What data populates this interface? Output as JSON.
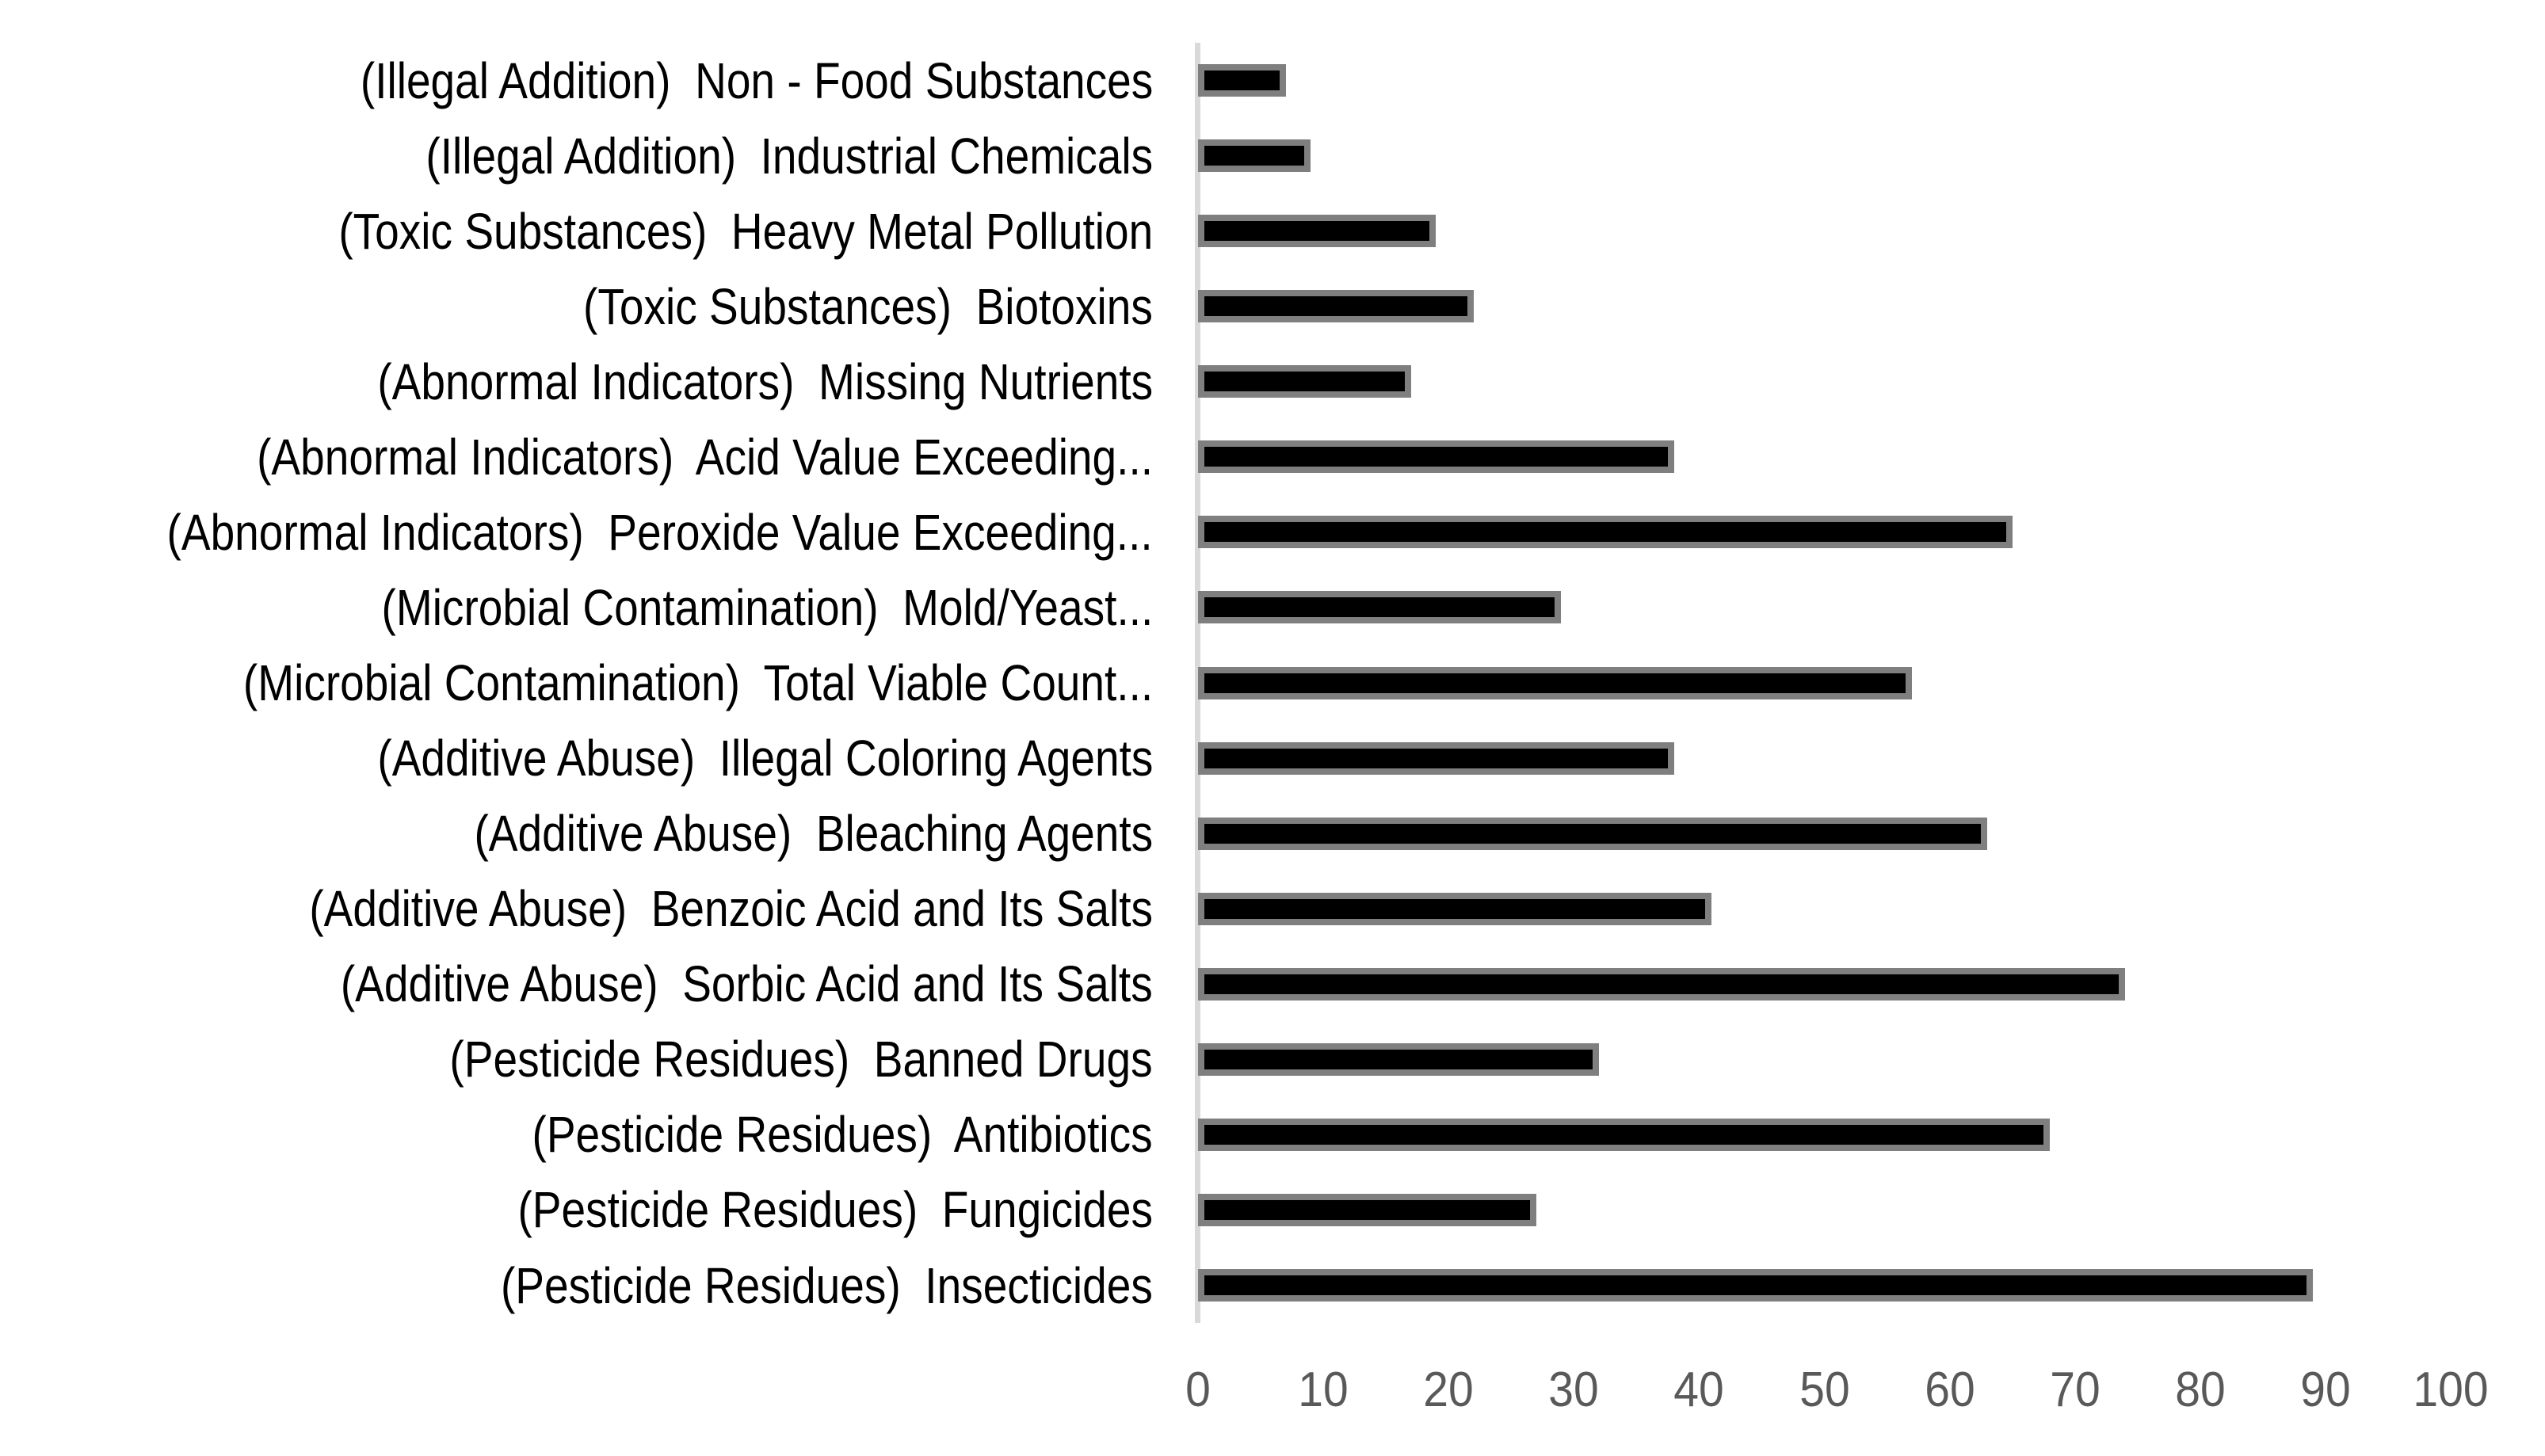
{
  "chart_data": {
    "type": "bar",
    "orientation": "horizontal",
    "title": "",
    "xlabel": "",
    "ylabel": "",
    "categories": [
      "(Illegal Addition)  Non - Food Substances",
      "(Illegal Addition)  Industrial Chemicals",
      "(Toxic Substances)  Heavy Metal Pollution",
      "(Toxic Substances)  Biotoxins",
      "(Abnormal Indicators)  Missing Nutrients",
      "(Abnormal Indicators)  Acid Value Exceeding...",
      "(Abnormal Indicators)  Peroxide Value Exceeding...",
      "(Microbial Contamination)  Mold/Yeast...",
      "(Microbial Contamination)  Total Viable Count...",
      "(Additive Abuse)  Illegal Coloring Agents",
      "(Additive Abuse)  Bleaching Agents",
      "(Additive Abuse)  Benzoic Acid and Its Salts",
      "(Additive Abuse)  Sorbic Acid and Its Salts",
      "(Pesticide Residues)  Banned Drugs",
      "(Pesticide Residues)  Antibiotics",
      "(Pesticide Residues)  Fungicides",
      "(Pesticide Residues)  Insecticides"
    ],
    "values": [
      7,
      9,
      19,
      22,
      17,
      38,
      65,
      29,
      57,
      38,
      63,
      41,
      74,
      32,
      68,
      27,
      89
    ],
    "xlim": [
      0,
      100
    ],
    "x_ticks": [
      0,
      10,
      20,
      30,
      40,
      50,
      60,
      70,
      80,
      90,
      100
    ],
    "grid": false,
    "legend": false,
    "colors": {
      "background": "#ffffff",
      "bar_fill": "#000000",
      "bar_border": "#7f7f7f",
      "axis_line": "#d9d9d9",
      "tick_label": "#595959",
      "category_label": "#000000"
    }
  }
}
